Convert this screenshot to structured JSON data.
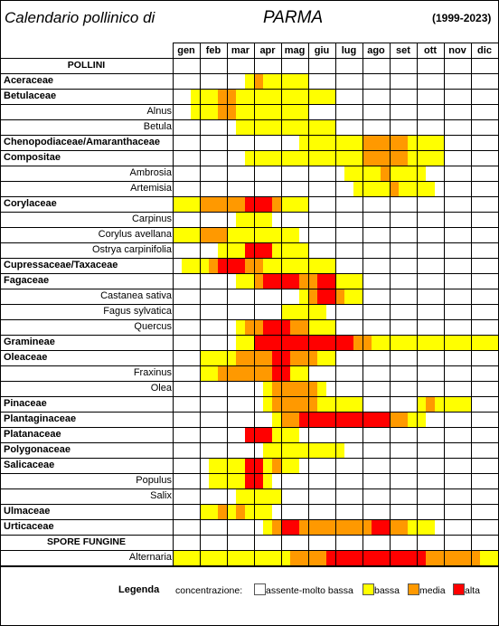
{
  "header": {
    "title_left": "Calendario pollinico di",
    "city": "PARMA",
    "years": "(1999-2023)"
  },
  "colors": {
    "0": "#ffffff",
    "1": "#ffff00",
    "2": "#ff9900",
    "3": "#ff0000"
  },
  "chart_data": {
    "type": "heatmap",
    "title": "Calendario pollinico di PARMA (1999-2023)",
    "months": [
      "gen",
      "feb",
      "mar",
      "apr",
      "mag",
      "giu",
      "lug",
      "ago",
      "set",
      "ott",
      "nov",
      "dic"
    ],
    "periods_per_month": 3,
    "scale": {
      "0": "assente-molto bassa",
      "1": "bassa",
      "2": "media",
      "3": "alta"
    },
    "rows": [
      {
        "label": "POLLINI",
        "kind": "section"
      },
      {
        "label": "Aceraceae",
        "kind": "family",
        "values": [
          0,
          0,
          0,
          0,
          0,
          0,
          0,
          0,
          1,
          2,
          1,
          1,
          1,
          1,
          1,
          0,
          0,
          0,
          0,
          0,
          0,
          0,
          0,
          0,
          0,
          0,
          0,
          0,
          0,
          0,
          0,
          0,
          0,
          0,
          0,
          0
        ]
      },
      {
        "label": "Betulaceae",
        "kind": "family",
        "values": [
          0,
          0,
          1,
          1,
          1,
          2,
          2,
          1,
          1,
          1,
          1,
          1,
          1,
          1,
          1,
          1,
          1,
          1,
          0,
          0,
          0,
          0,
          0,
          0,
          0,
          0,
          0,
          0,
          0,
          0,
          0,
          0,
          0,
          0,
          0,
          0
        ]
      },
      {
        "label": "Alnus",
        "kind": "species",
        "values": [
          0,
          0,
          1,
          1,
          1,
          2,
          2,
          1,
          1,
          1,
          1,
          1,
          1,
          1,
          1,
          0,
          0,
          0,
          0,
          0,
          0,
          0,
          0,
          0,
          0,
          0,
          0,
          0,
          0,
          0,
          0,
          0,
          0,
          0,
          0,
          0
        ]
      },
      {
        "label": "Betula",
        "kind": "species",
        "values": [
          0,
          0,
          0,
          0,
          0,
          0,
          0,
          1,
          1,
          1,
          1,
          1,
          1,
          1,
          1,
          1,
          1,
          1,
          0,
          0,
          0,
          0,
          0,
          0,
          0,
          0,
          0,
          0,
          0,
          0,
          0,
          0,
          0,
          0,
          0,
          0
        ]
      },
      {
        "label": "Chenopodiaceae/Amaranthaceae",
        "kind": "family",
        "values": [
          0,
          0,
          0,
          0,
          0,
          0,
          0,
          0,
          0,
          0,
          0,
          0,
          0,
          0,
          1,
          1,
          1,
          1,
          1,
          1,
          1,
          2,
          2,
          2,
          2,
          2,
          1,
          1,
          1,
          1,
          0,
          0,
          0,
          0,
          0,
          0
        ]
      },
      {
        "label": "Compositae",
        "kind": "family",
        "values": [
          0,
          0,
          0,
          0,
          0,
          0,
          0,
          0,
          1,
          1,
          1,
          1,
          1,
          1,
          1,
          1,
          1,
          1,
          1,
          1,
          1,
          2,
          2,
          2,
          2,
          2,
          1,
          1,
          1,
          1,
          0,
          0,
          0,
          0,
          0,
          0
        ]
      },
      {
        "label": "Ambrosia",
        "kind": "species",
        "values": [
          0,
          0,
          0,
          0,
          0,
          0,
          0,
          0,
          0,
          0,
          0,
          0,
          0,
          0,
          0,
          0,
          0,
          0,
          0,
          1,
          1,
          1,
          1,
          2,
          1,
          1,
          1,
          1,
          0,
          0,
          0,
          0,
          0,
          0,
          0,
          0
        ]
      },
      {
        "label": "Artemisia",
        "kind": "species",
        "values": [
          0,
          0,
          0,
          0,
          0,
          0,
          0,
          0,
          0,
          0,
          0,
          0,
          0,
          0,
          0,
          0,
          0,
          0,
          0,
          0,
          1,
          1,
          1,
          1,
          2,
          1,
          1,
          1,
          1,
          0,
          0,
          0,
          0,
          0,
          0,
          0
        ]
      },
      {
        "label": "Corylaceae",
        "kind": "family",
        "values": [
          1,
          1,
          1,
          2,
          2,
          2,
          2,
          2,
          3,
          3,
          3,
          2,
          1,
          1,
          1,
          0,
          0,
          0,
          0,
          0,
          0,
          0,
          0,
          0,
          0,
          0,
          0,
          0,
          0,
          0,
          0,
          0,
          0,
          0,
          0,
          0
        ]
      },
      {
        "label": "Carpinus",
        "kind": "species",
        "values": [
          0,
          0,
          0,
          0,
          0,
          0,
          0,
          1,
          1,
          1,
          1,
          0,
          0,
          0,
          0,
          0,
          0,
          0,
          0,
          0,
          0,
          0,
          0,
          0,
          0,
          0,
          0,
          0,
          0,
          0,
          0,
          0,
          0,
          0,
          0,
          0
        ]
      },
      {
        "label": "Corylus avellana",
        "kind": "species",
        "values": [
          1,
          1,
          1,
          2,
          2,
          2,
          1,
          1,
          1,
          1,
          1,
          1,
          1,
          1,
          0,
          0,
          0,
          0,
          0,
          0,
          0,
          0,
          0,
          0,
          0,
          0,
          0,
          0,
          0,
          0,
          0,
          0,
          0,
          0,
          0,
          0
        ]
      },
      {
        "label": "Ostrya carpinifolia",
        "kind": "species",
        "values": [
          0,
          0,
          0,
          0,
          0,
          1,
          1,
          1,
          3,
          3,
          3,
          1,
          1,
          1,
          1,
          0,
          0,
          0,
          0,
          0,
          0,
          0,
          0,
          0,
          0,
          0,
          0,
          0,
          0,
          0,
          0,
          0,
          0,
          0,
          0,
          0
        ]
      },
      {
        "label": "Cupressaceae/Taxaceae",
        "kind": "family",
        "values": [
          0,
          1,
          1,
          1,
          2,
          3,
          3,
          3,
          2,
          2,
          1,
          1,
          1,
          1,
          1,
          1,
          1,
          1,
          0,
          0,
          0,
          0,
          0,
          0,
          0,
          0,
          0,
          0,
          0,
          0,
          0,
          0,
          0,
          0,
          0,
          0
        ]
      },
      {
        "label": "Fagaceae",
        "kind": "family",
        "values": [
          0,
          0,
          0,
          0,
          0,
          0,
          0,
          1,
          1,
          2,
          3,
          3,
          3,
          3,
          2,
          2,
          3,
          3,
          1,
          1,
          1,
          0,
          0,
          0,
          0,
          0,
          0,
          0,
          0,
          0,
          0,
          0,
          0,
          0,
          0,
          0
        ]
      },
      {
        "label": "Castanea sativa",
        "kind": "species",
        "values": [
          0,
          0,
          0,
          0,
          0,
          0,
          0,
          0,
          0,
          0,
          0,
          0,
          0,
          0,
          1,
          2,
          3,
          3,
          2,
          1,
          1,
          0,
          0,
          0,
          0,
          0,
          0,
          0,
          0,
          0,
          0,
          0,
          0,
          0,
          0,
          0
        ]
      },
      {
        "label": "Fagus sylvatica",
        "kind": "species",
        "values": [
          0,
          0,
          0,
          0,
          0,
          0,
          0,
          0,
          0,
          0,
          0,
          0,
          1,
          1,
          1,
          1,
          1,
          0,
          0,
          0,
          0,
          0,
          0,
          0,
          0,
          0,
          0,
          0,
          0,
          0,
          0,
          0,
          0,
          0,
          0,
          0
        ]
      },
      {
        "label": "Quercus",
        "kind": "species",
        "values": [
          0,
          0,
          0,
          0,
          0,
          0,
          0,
          1,
          2,
          2,
          3,
          3,
          3,
          2,
          2,
          1,
          1,
          1,
          0,
          0,
          0,
          0,
          0,
          0,
          0,
          0,
          0,
          0,
          0,
          0,
          0,
          0,
          0,
          0,
          0,
          0
        ]
      },
      {
        "label": "Gramineae",
        "kind": "family",
        "values": [
          0,
          0,
          0,
          0,
          0,
          0,
          0,
          1,
          1,
          3,
          3,
          3,
          3,
          3,
          3,
          3,
          3,
          3,
          3,
          3,
          2,
          2,
          1,
          1,
          1,
          1,
          1,
          1,
          1,
          1,
          1,
          1,
          1,
          1,
          1,
          1
        ]
      },
      {
        "label": "Oleaceae",
        "kind": "family",
        "values": [
          0,
          0,
          0,
          1,
          1,
          1,
          1,
          2,
          2,
          2,
          2,
          3,
          3,
          2,
          2,
          2,
          1,
          1,
          0,
          0,
          0,
          0,
          0,
          0,
          0,
          0,
          0,
          0,
          0,
          0,
          0,
          0,
          0,
          0,
          0,
          0
        ]
      },
      {
        "label": "Fraxinus",
        "kind": "species",
        "values": [
          0,
          0,
          0,
          1,
          1,
          2,
          2,
          2,
          2,
          2,
          2,
          3,
          3,
          1,
          1,
          0,
          0,
          0,
          0,
          0,
          0,
          0,
          0,
          0,
          0,
          0,
          0,
          0,
          0,
          0,
          0,
          0,
          0,
          0,
          0,
          0
        ]
      },
      {
        "label": "Olea",
        "kind": "species",
        "values": [
          0,
          0,
          0,
          0,
          0,
          0,
          0,
          0,
          0,
          0,
          1,
          2,
          2,
          2,
          2,
          2,
          1,
          0,
          0,
          0,
          0,
          0,
          0,
          0,
          0,
          0,
          0,
          0,
          0,
          0,
          0,
          0,
          0,
          0,
          0,
          0
        ]
      },
      {
        "label": "Pinaceae",
        "kind": "family",
        "values": [
          0,
          0,
          0,
          0,
          0,
          0,
          0,
          0,
          0,
          0,
          1,
          2,
          2,
          2,
          2,
          2,
          1,
          1,
          1,
          1,
          1,
          0,
          0,
          0,
          0,
          0,
          0,
          1,
          2,
          1,
          1,
          1,
          1,
          0,
          0,
          0
        ]
      },
      {
        "label": "Plantaginaceae",
        "kind": "family",
        "values": [
          0,
          0,
          0,
          0,
          0,
          0,
          0,
          0,
          0,
          0,
          0,
          1,
          2,
          2,
          3,
          3,
          3,
          3,
          3,
          3,
          3,
          3,
          3,
          3,
          2,
          2,
          1,
          1,
          0,
          0,
          0,
          0,
          0,
          0,
          0,
          0
        ]
      },
      {
        "label": "Platanaceae",
        "kind": "family",
        "values": [
          0,
          0,
          0,
          0,
          0,
          0,
          0,
          0,
          3,
          3,
          3,
          1,
          1,
          1,
          0,
          0,
          0,
          0,
          0,
          0,
          0,
          0,
          0,
          0,
          0,
          0,
          0,
          0,
          0,
          0,
          0,
          0,
          0,
          0,
          0,
          0
        ]
      },
      {
        "label": "Polygonaceae",
        "kind": "family",
        "values": [
          0,
          0,
          0,
          0,
          0,
          0,
          0,
          0,
          0,
          0,
          1,
          1,
          1,
          1,
          1,
          1,
          1,
          1,
          1,
          0,
          0,
          0,
          0,
          0,
          0,
          0,
          0,
          0,
          0,
          0,
          0,
          0,
          0,
          0,
          0,
          0
        ]
      },
      {
        "label": "Salicaceae",
        "kind": "family",
        "values": [
          0,
          0,
          0,
          0,
          1,
          1,
          1,
          1,
          3,
          3,
          1,
          2,
          1,
          1,
          0,
          0,
          0,
          0,
          0,
          0,
          0,
          0,
          0,
          0,
          0,
          0,
          0,
          0,
          0,
          0,
          0,
          0,
          0,
          0,
          0,
          0
        ]
      },
      {
        "label": "Populus",
        "kind": "species",
        "values": [
          0,
          0,
          0,
          0,
          1,
          1,
          1,
          1,
          3,
          3,
          1,
          0,
          0,
          0,
          0,
          0,
          0,
          0,
          0,
          0,
          0,
          0,
          0,
          0,
          0,
          0,
          0,
          0,
          0,
          0,
          0,
          0,
          0,
          0,
          0,
          0
        ]
      },
      {
        "label": "Salix",
        "kind": "species",
        "values": [
          0,
          0,
          0,
          0,
          0,
          0,
          0,
          1,
          1,
          1,
          1,
          1,
          0,
          0,
          0,
          0,
          0,
          0,
          0,
          0,
          0,
          0,
          0,
          0,
          0,
          0,
          0,
          0,
          0,
          0,
          0,
          0,
          0,
          0,
          0,
          0
        ]
      },
      {
        "label": "Ulmaceae",
        "kind": "family",
        "values": [
          0,
          0,
          0,
          1,
          1,
          2,
          1,
          2,
          1,
          1,
          1,
          0,
          0,
          0,
          0,
          0,
          0,
          0,
          0,
          0,
          0,
          0,
          0,
          0,
          0,
          0,
          0,
          0,
          0,
          0,
          0,
          0,
          0,
          0,
          0,
          0
        ]
      },
      {
        "label": "Urticaceae",
        "kind": "family",
        "values": [
          0,
          0,
          0,
          0,
          0,
          0,
          0,
          0,
          0,
          0,
          1,
          2,
          3,
          3,
          2,
          2,
          2,
          2,
          2,
          2,
          2,
          2,
          3,
          3,
          2,
          2,
          1,
          1,
          1,
          0,
          0,
          0,
          0,
          0,
          0,
          0
        ]
      },
      {
        "label": "SPORE FUNGINE",
        "kind": "section"
      },
      {
        "label": "Alternaria",
        "kind": "species",
        "values": [
          1,
          1,
          1,
          1,
          1,
          1,
          1,
          1,
          1,
          1,
          1,
          1,
          1,
          2,
          2,
          2,
          2,
          3,
          3,
          3,
          3,
          3,
          3,
          3,
          3,
          3,
          3,
          3,
          2,
          2,
          2,
          2,
          2,
          2,
          1,
          1
        ]
      }
    ]
  },
  "legend": {
    "title": "Legenda",
    "label": "concentrazione:",
    "items": [
      {
        "key": "0",
        "label": "assente-molto bassa"
      },
      {
        "key": "1",
        "label": "bassa"
      },
      {
        "key": "2",
        "label": "media"
      },
      {
        "key": "3",
        "label": "alta"
      }
    ]
  }
}
